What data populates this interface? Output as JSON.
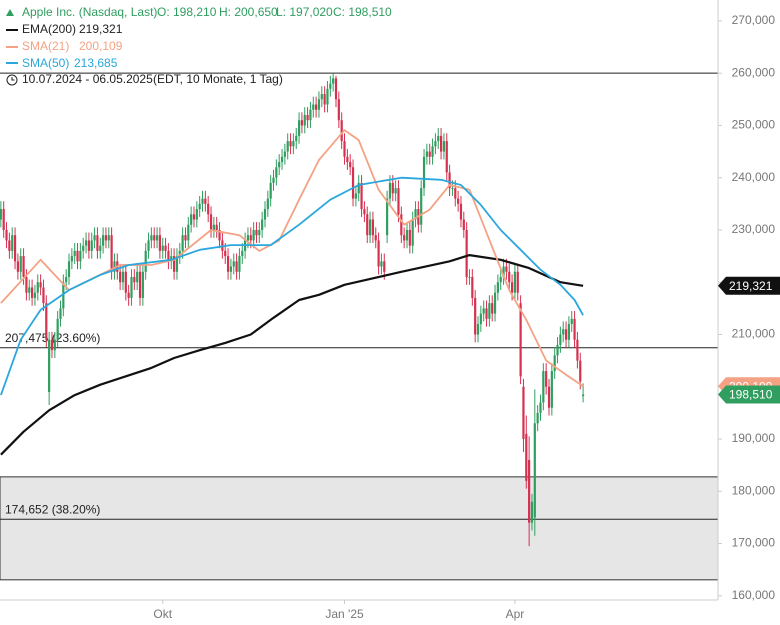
{
  "header": {
    "title": "Apple Inc. (Nasdaq, Last)",
    "ohlc": [
      "O: 198,210",
      "H: 200,650",
      "L: 197,020",
      "C: 198,510"
    ],
    "range": "10.07.2024 - 06.05.2025",
    "range_note": "(EDT, 10 Monate, 1 Tag)"
  },
  "chart_data": {
    "type": "candlestick",
    "up_color": "#2f9e5f",
    "down_color": "#d6304f",
    "xlim": [
      0.7,
      253.5
    ],
    "ylim": [
      159200,
      274000
    ],
    "xticks": [
      {
        "value": 58,
        "label": "Okt"
      },
      {
        "value": 122,
        "label": "Jan '25"
      },
      {
        "value": 182,
        "label": "Apr"
      }
    ],
    "yticks": [
      {
        "value": 160000,
        "label": "160,000"
      },
      {
        "value": 170000,
        "label": "170,000"
      },
      {
        "value": 180000,
        "label": "180,000"
      },
      {
        "value": 190000,
        "label": "190,000"
      },
      {
        "value": 200000,
        "label": "200,000"
      },
      {
        "value": 210000,
        "label": "210,000"
      },
      {
        "value": 220000,
        "label": "220,000"
      },
      {
        "value": 230000,
        "label": "230,000"
      },
      {
        "value": 240000,
        "label": "240,000"
      },
      {
        "value": 250000,
        "label": "250,000"
      },
      {
        "value": 260000,
        "label": "260,000"
      },
      {
        "value": 270000,
        "label": "270,000"
      }
    ],
    "hline": 260000,
    "zone": [
      163060,
      182760
    ],
    "levels": [
      {
        "value": 207475,
        "label": "207,475 (23.60%)"
      },
      {
        "value": 174652,
        "label": "174,652 (38.20%)"
      }
    ],
    "last_label": "198,510",
    "open": [
      230000,
      232000,
      234000,
      230000,
      228000,
      226000,
      229000,
      224000,
      222000,
      225000,
      221000,
      218000,
      219000,
      217000,
      218000,
      220000,
      219000,
      216000,
      199000,
      209000,
      207000,
      209000,
      213000,
      215000,
      220000,
      221000,
      224000,
      225000,
      226000,
      224000,
      226000,
      227000,
      228000,
      226000,
      228000,
      229000,
      226000,
      227000,
      229000,
      228000,
      229000,
      222000,
      224000,
      222000,
      220000,
      222000,
      218000,
      217000,
      221000,
      220000,
      222000,
      217000,
      222000,
      226000,
      228000,
      229000,
      228000,
      229000,
      226000,
      227000,
      226000,
      224000,
      225000,
      222000,
      225000,
      226000,
      229000,
      228000,
      231000,
      233000,
      232000,
      234000,
      235000,
      236000,
      235000,
      233000,
      230000,
      231000,
      230000,
      228000,
      226000,
      225000,
      222000,
      223000,
      224000,
      222000,
      225000,
      226000,
      228000,
      229000,
      228000,
      230000,
      229000,
      230000,
      232000,
      234000,
      236000,
      239000,
      240000,
      242000,
      243000,
      244000,
      245000,
      247000,
      246000,
      247000,
      248000,
      251000,
      250000,
      252000,
      251000,
      253000,
      254000,
      253000,
      255000,
      256000,
      254000,
      257000,
      258000,
      259000,
      255000,
      251000,
      247000,
      244000,
      243000,
      242000,
      236000,
      237000,
      239000,
      234000,
      233000,
      229000,
      232000,
      229000,
      228000,
      223000,
      224000,
      229000,
      236000,
      239000,
      237000,
      238000,
      233000,
      229000,
      228000,
      230000,
      227000,
      232000,
      234000,
      231000,
      238000,
      244000,
      245000,
      244000,
      246000,
      247000,
      248000,
      245000,
      247000,
      241000,
      238000,
      238000,
      236000,
      235000,
      232000,
      230000,
      221000,
      221000,
      217000,
      210000,
      212000,
      214000,
      215000,
      213000,
      216000,
      214000,
      218000,
      220000,
      221000,
      223000,
      222000,
      220000,
      218000,
      222000,
      216000,
      200000,
      191000,
      186000,
      174000,
      175000,
      193000,
      195000,
      197000,
      203000,
      200000,
      196000,
      203000,
      206000,
      208000,
      210000,
      211000,
      209000,
      212000,
      213000,
      209000,
      205000,
      198210
    ],
    "high": [
      233500,
      235500,
      235500,
      231500,
      229500,
      230500,
      230500,
      225500,
      226500,
      226500,
      222500,
      220500,
      220500,
      219500,
      221500,
      221500,
      220500,
      217500,
      210500,
      210500,
      210500,
      214500,
      216500,
      221500,
      222500,
      225500,
      226500,
      227500,
      227500,
      227500,
      228500,
      229500,
      229500,
      229500,
      230500,
      230500,
      228500,
      230500,
      230500,
      230500,
      230500,
      225500,
      225500,
      223500,
      223500,
      223500,
      219500,
      222500,
      222500,
      223500,
      223500,
      223500,
      227500,
      229500,
      230500,
      230500,
      230500,
      230500,
      228500,
      228500,
      227500,
      226500,
      226500,
      226500,
      227500,
      230500,
      230500,
      232500,
      234500,
      234500,
      235500,
      236500,
      237500,
      237500,
      236500,
      234500,
      232500,
      232500,
      231500,
      229500,
      227500,
      226500,
      224500,
      225500,
      225500,
      226500,
      227500,
      229500,
      230500,
      230500,
      231500,
      231500,
      231500,
      233500,
      235500,
      237500,
      240500,
      241500,
      243500,
      244500,
      245500,
      246500,
      248500,
      248500,
      248500,
      249500,
      252500,
      252500,
      253500,
      253500,
      254500,
      255500,
      255500,
      256500,
      257500,
      257500,
      258500,
      259500,
      260000,
      259500,
      256500,
      252500,
      248500,
      245500,
      244500,
      243500,
      238500,
      240500,
      240500,
      235500,
      234500,
      233500,
      233500,
      230500,
      229500,
      225500,
      225500,
      237500,
      240500,
      240500,
      239500,
      239500,
      234500,
      230500,
      231500,
      231500,
      233500,
      235500,
      235500,
      239500,
      245500,
      246500,
      246500,
      247500,
      248500,
      249500,
      249500,
      248500,
      248500,
      242500,
      239500,
      239500,
      237500,
      236500,
      233500,
      231500,
      222500,
      222500,
      218500,
      213500,
      215500,
      216500,
      216500,
      217500,
      217500,
      219500,
      221500,
      222500,
      224500,
      224500,
      223500,
      221500,
      223500,
      223500,
      217500,
      201500,
      194500,
      190500,
      179500,
      199500,
      196500,
      198500,
      204500,
      204500,
      201500,
      204500,
      207500,
      209500,
      211500,
      212500,
      212500,
      213500,
      214500,
      214500,
      210500,
      206500,
      200650
    ],
    "low": [
      228500,
      230500,
      228500,
      226500,
      224500,
      224500,
      222500,
      220500,
      220500,
      219500,
      216500,
      216500,
      215500,
      215500,
      216500,
      217500,
      214500,
      207500,
      196500,
      205500,
      205500,
      207500,
      211500,
      213500,
      218500,
      219500,
      222500,
      223500,
      222500,
      222500,
      224500,
      225500,
      224500,
      224500,
      226500,
      224500,
      224500,
      225500,
      226500,
      226500,
      220500,
      220500,
      220500,
      218500,
      218500,
      216500,
      215500,
      215500,
      218500,
      218500,
      215500,
      215500,
      220500,
      224500,
      226500,
      226500,
      226500,
      224500,
      224500,
      224500,
      222500,
      222500,
      220500,
      220500,
      223500,
      224500,
      226500,
      226500,
      229500,
      230500,
      230500,
      232500,
      233500,
      233500,
      231500,
      228500,
      228500,
      228500,
      226500,
      224500,
      223500,
      220500,
      220500,
      221500,
      220500,
      220500,
      223500,
      224500,
      226500,
      226500,
      226500,
      227500,
      227500,
      228500,
      230500,
      232500,
      234500,
      237500,
      238500,
      240500,
      241500,
      242500,
      243500,
      244500,
      244500,
      245500,
      246500,
      248500,
      248500,
      249500,
      249500,
      251500,
      251500,
      251500,
      253500,
      252500,
      252500,
      255500,
      256500,
      253500,
      249500,
      245500,
      242500,
      241500,
      240500,
      234500,
      234500,
      235500,
      232500,
      231500,
      227500,
      227500,
      227500,
      226500,
      221500,
      221500,
      220500,
      227500,
      234500,
      235500,
      235500,
      231500,
      227500,
      226500,
      226500,
      225500,
      225500,
      230500,
      229500,
      229500,
      236500,
      242500,
      242500,
      242500,
      244500,
      245500,
      243500,
      243500,
      239500,
      236500,
      236500,
      234500,
      233500,
      230500,
      228500,
      219500,
      219500,
      215500,
      208500,
      208500,
      210500,
      212500,
      211500,
      211500,
      212500,
      212500,
      216500,
      218500,
      219500,
      220500,
      218500,
      216500,
      216500,
      216500,
      200500,
      187500,
      180500,
      169500,
      172500,
      171500,
      191500,
      193500,
      195500,
      198500,
      194500,
      194500,
      201500,
      204500,
      206500,
      208500,
      207500,
      207500,
      210500,
      207500,
      203500,
      199500,
      197020
    ],
    "close": [
      232000,
      234000,
      230000,
      228000,
      226000,
      229000,
      224000,
      222000,
      225000,
      221000,
      218000,
      219000,
      217000,
      218000,
      220000,
      219000,
      216000,
      209000,
      209000,
      207000,
      209000,
      213000,
      215000,
      220000,
      221000,
      224000,
      225000,
      226000,
      224000,
      226000,
      227000,
      228000,
      226000,
      228000,
      229000,
      226000,
      227000,
      229000,
      228000,
      229000,
      222000,
      224000,
      222000,
      220000,
      222000,
      218000,
      217000,
      221000,
      220000,
      222000,
      217000,
      222000,
      226000,
      228000,
      229000,
      228000,
      229000,
      226000,
      227000,
      226000,
      224000,
      225000,
      222000,
      225000,
      226000,
      229000,
      228000,
      231000,
      233000,
      232000,
      234000,
      235000,
      236000,
      235000,
      233000,
      230000,
      231000,
      230000,
      228000,
      226000,
      225000,
      222000,
      223000,
      224000,
      222000,
      225000,
      226000,
      228000,
      229000,
      228000,
      230000,
      229000,
      230000,
      232000,
      234000,
      236000,
      239000,
      240000,
      242000,
      243000,
      244000,
      245000,
      247000,
      246000,
      247000,
      248000,
      251000,
      250000,
      252000,
      251000,
      253000,
      254000,
      253000,
      255000,
      256000,
      254000,
      257000,
      258000,
      259000,
      255000,
      251000,
      247000,
      244000,
      243000,
      242000,
      236000,
      237000,
      239000,
      234000,
      233000,
      229000,
      232000,
      229000,
      228000,
      223000,
      224000,
      222000,
      236000,
      239000,
      237000,
      238000,
      233000,
      229000,
      228000,
      230000,
      227000,
      232000,
      234000,
      231000,
      238000,
      244000,
      245000,
      244000,
      246000,
      247000,
      248000,
      245000,
      247000,
      241000,
      238000,
      238000,
      236000,
      235000,
      232000,
      230000,
      221000,
      221000,
      217000,
      210000,
      212000,
      214000,
      215000,
      213000,
      216000,
      214000,
      218000,
      220000,
      221000,
      223000,
      222000,
      220000,
      218000,
      222000,
      218000,
      202000,
      190000,
      182000,
      174000,
      178000,
      193000,
      195000,
      197000,
      203000,
      200000,
      196000,
      203000,
      206000,
      208000,
      210000,
      211000,
      209000,
      212000,
      213000,
      209000,
      205000,
      201000,
      198510
    ],
    "series": [
      {
        "name": "EMA(200)",
        "color": "#111111",
        "value_label": "219,321",
        "x": [
          1,
          9,
          18,
          27,
          36,
          45,
          54,
          62,
          71,
          80,
          89,
          97,
          106,
          113,
          122,
          142,
          159,
          166,
          177,
          187,
          198,
          206
        ],
        "values": [
          187000,
          191400,
          195500,
          198400,
          200400,
          202000,
          203600,
          205500,
          207000,
          208400,
          210000,
          213200,
          216600,
          217600,
          219500,
          222000,
          224000,
          225200,
          224300,
          222700,
          220000,
          219321
        ]
      },
      {
        "name": "SMA(21)",
        "color": "#f4a283",
        "value_label": "200,109",
        "x": [
          1,
          15,
          25,
          43,
          54,
          62,
          75,
          85,
          92,
          99,
          106,
          113,
          122,
          127,
          134,
          143,
          152,
          159,
          166,
          173,
          180,
          186,
          193,
          200,
          206
        ],
        "values": [
          216000,
          224300,
          218500,
          223300,
          223300,
          224300,
          230000,
          229000,
          226000,
          228000,
          235800,
          243400,
          249100,
          247200,
          237700,
          231000,
          233900,
          238600,
          237700,
          228100,
          218500,
          212800,
          205000,
          202300,
          200109
        ]
      },
      {
        "name": "SMA(50)",
        "color": "#2aa7dc",
        "value_label": "213,685",
        "x": [
          1,
          8,
          15,
          25,
          36,
          46,
          61,
          71,
          82,
          96,
          106,
          117,
          127,
          142,
          156,
          163,
          170,
          177,
          184,
          191,
          198,
          203,
          206
        ],
        "values": [
          198400,
          209000,
          214700,
          218500,
          221400,
          223300,
          224300,
          226200,
          227100,
          227100,
          231000,
          235800,
          238600,
          240000,
          239600,
          238600,
          234800,
          230000,
          226200,
          222400,
          219500,
          216600,
          213685
        ]
      }
    ]
  }
}
